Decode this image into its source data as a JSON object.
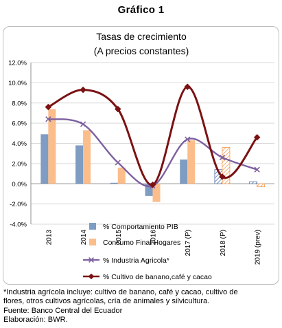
{
  "heading": "Gráfico 1",
  "chart_data": {
    "type": "bar",
    "title": "Tasas de crecimiento",
    "subtitle": "(A precios constantes)",
    "categories": [
      "2013",
      "2014",
      "2015",
      "2016",
      "2017 (P)",
      "2018 (P)",
      "2019 (prev)"
    ],
    "ylim": [
      -4,
      12
    ],
    "yticks": [
      "-4.0%",
      "-2.0%",
      "0.0%",
      "2.0%",
      "4.0%",
      "6.0%",
      "8.0%",
      "10.0%",
      "12.0%"
    ],
    "grid": true,
    "legend_position": "bottom",
    "series": [
      {
        "name": "% Comportamiento PIB",
        "kind": "bar",
        "style": "solid",
        "color": "#7f9cc2",
        "values": [
          4.9,
          3.8,
          0.1,
          -1.2,
          2.4,
          1.4,
          0.2
        ]
      },
      {
        "name": "Consumo Final Hogares",
        "kind": "bar",
        "style": "solid",
        "color": "#fbbe8b",
        "values": [
          7.4,
          5.3,
          1.6,
          -1.8,
          4.3,
          3.6,
          -0.3
        ]
      },
      {
        "name": "%  Industria Agricola*",
        "kind": "line",
        "marker": "x",
        "color": "#7d60a0",
        "values": [
          6.4,
          5.9,
          2.1,
          -0.2,
          4.4,
          2.6,
          1.4
        ]
      },
      {
        "name": "% Cultivo de banano,café y cacao",
        "kind": "line",
        "marker": "diamond",
        "color": "#7b1113",
        "values": [
          7.6,
          9.3,
          7.4,
          -0.1,
          9.6,
          0.7,
          4.6
        ]
      }
    ],
    "special_styles": {
      "hatched_bars": [
        [
          0,
          5
        ],
        [
          0,
          6
        ],
        [
          1,
          5
        ],
        [
          1,
          6
        ]
      ]
    }
  },
  "notes": [
    "*Industria agrícola incluye: cultivo de banano, café y cacao, cultivo de",
    "flores, otros cultivos agrícolas, cría de animales y silvicultura.",
    "Fuente: Banco Central del Ecuador",
    "Elaboración: BWR."
  ]
}
